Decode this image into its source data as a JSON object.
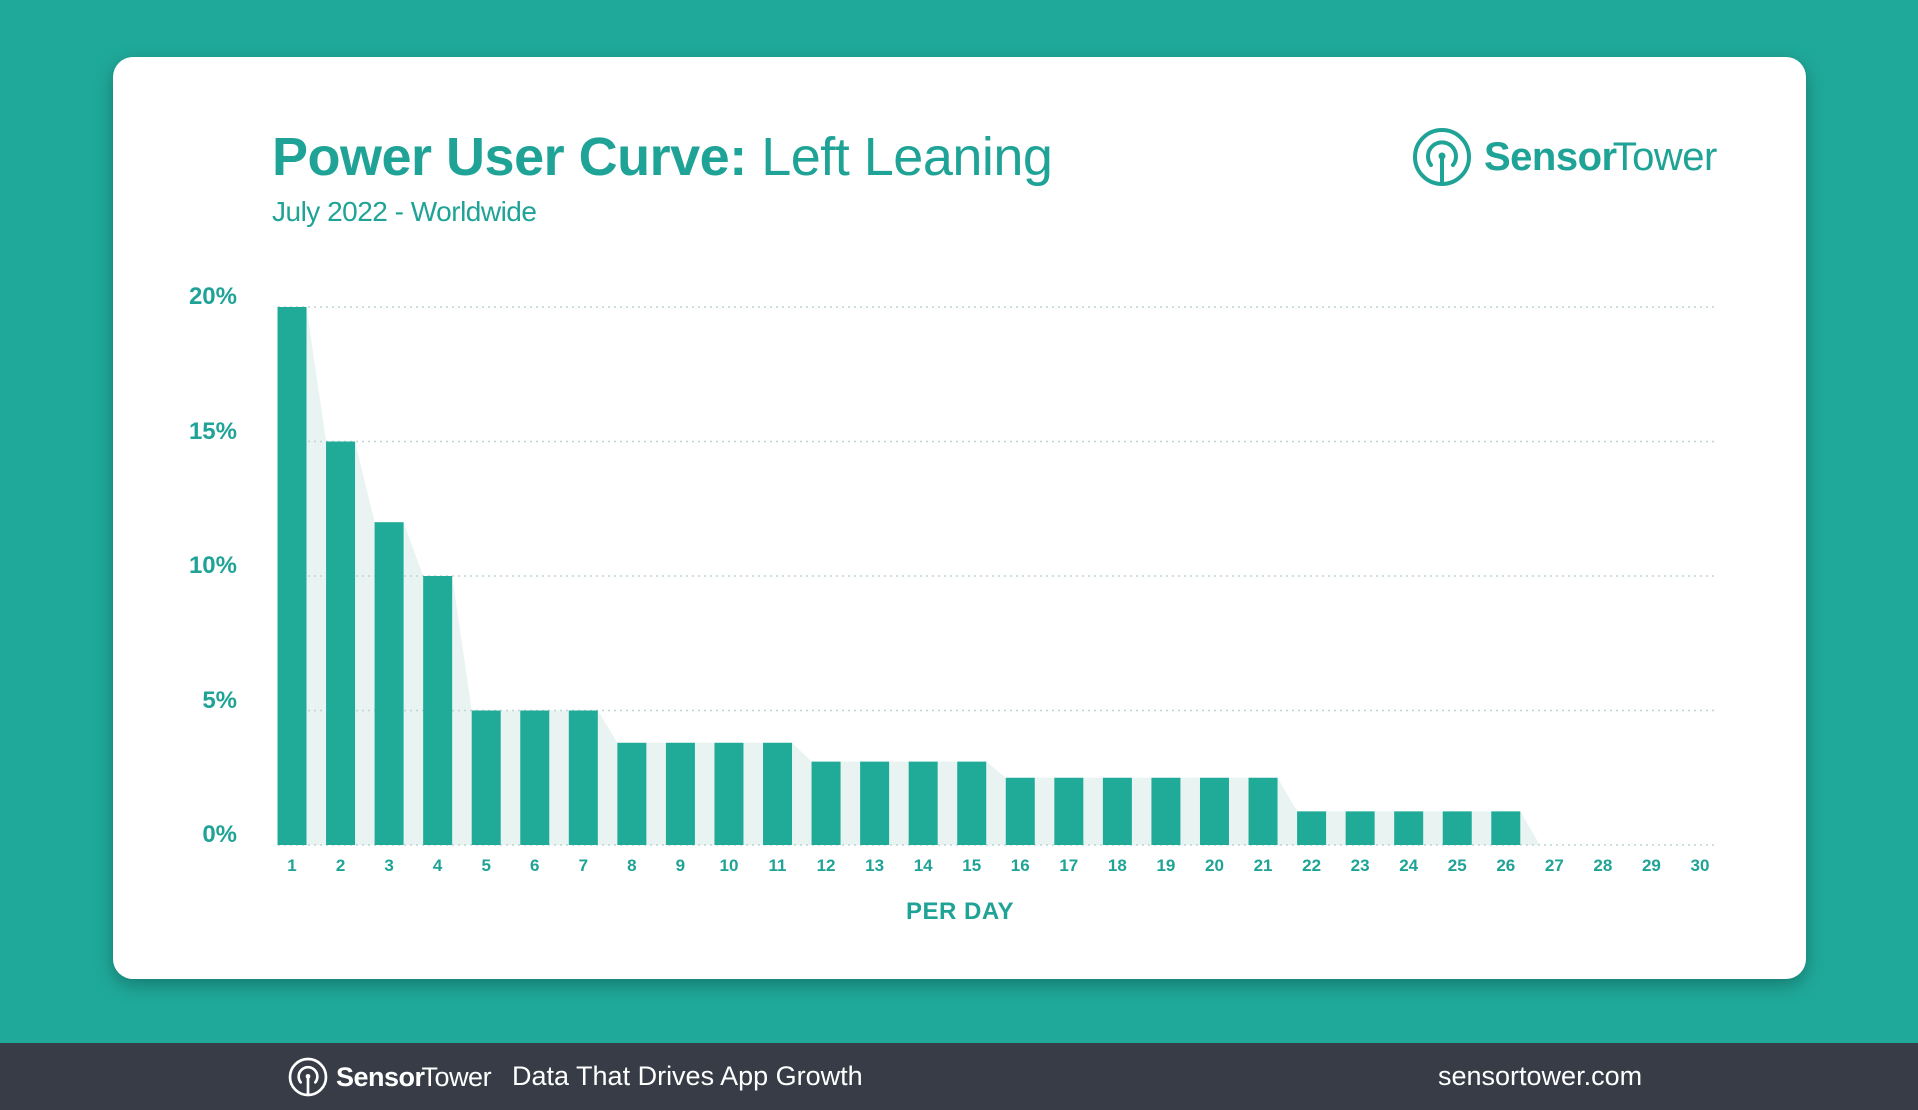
{
  "header": {
    "title_bold": "Power User Curve:",
    "title_light": " Left Leaning",
    "subtitle": "July 2022 - Worldwide"
  },
  "logo": {
    "icon": "sensor-tower-icon",
    "brand_bold": "Sensor",
    "brand_light": "Tower"
  },
  "colors": {
    "background": "#1fa99a",
    "bar": "#20ab98",
    "area": "#e8f3f2",
    "text_accent": "#1fa396",
    "grid": "#bcd6d4",
    "footer": "#373c47"
  },
  "footer": {
    "brand_bold": "Sensor",
    "brand_light": "Tower",
    "tagline": "Data That Drives App Growth",
    "url": "sensortower.com"
  },
  "chart_data": {
    "type": "bar",
    "title": "Power User Curve: Left Leaning",
    "subtitle": "July 2022 - Worldwide",
    "xlabel": "PER DAY",
    "ylabel": "",
    "categories": [
      "1",
      "2",
      "3",
      "4",
      "5",
      "6",
      "7",
      "8",
      "9",
      "10",
      "11",
      "12",
      "13",
      "14",
      "15",
      "16",
      "17",
      "18",
      "19",
      "20",
      "21",
      "22",
      "23",
      "24",
      "25",
      "26",
      "27",
      "28",
      "29",
      "30"
    ],
    "values": [
      20,
      15,
      12,
      10,
      5,
      5,
      5,
      3.8,
      3.8,
      3.8,
      3.8,
      3.1,
      3.1,
      3.1,
      3.1,
      2.5,
      2.5,
      2.5,
      2.5,
      2.5,
      2.5,
      1.25,
      1.25,
      1.25,
      1.25,
      1.25,
      0,
      0,
      0,
      0
    ],
    "unit": "%",
    "yticks": [
      "0%",
      "5%",
      "10%",
      "15%",
      "20%"
    ],
    "ylim": [
      0,
      20
    ],
    "grid": true,
    "grid_style": "dotted horizontal",
    "area_shading": true,
    "legend": null
  }
}
